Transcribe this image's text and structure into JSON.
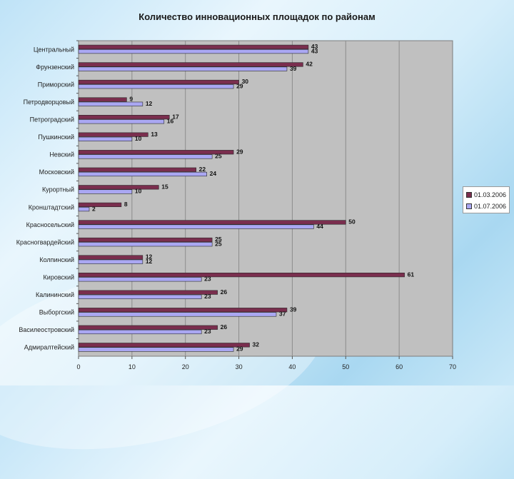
{
  "chart_data": {
    "type": "bar",
    "orientation": "horizontal",
    "title": "Количество инновационных площадок по районам",
    "categories": [
      "Центральный",
      "Фрунзенский",
      "Приморский",
      "Петродворцовый",
      "Петроградский",
      "Пушкинский",
      "Невский",
      "Московский",
      "Курортный",
      "Кронштадтский",
      "Красносельский",
      "Красногвардейский",
      "Колпинский",
      "Кировский",
      "Калининский",
      "Выборгский",
      "Василеостровский",
      "Адмиралтейский"
    ],
    "series": [
      {
        "name": "01.03.2006",
        "color": "#7a2e4e",
        "values": [
          43,
          42,
          30,
          9,
          17,
          13,
          29,
          22,
          15,
          8,
          50,
          25,
          12,
          61,
          26,
          39,
          26,
          32
        ]
      },
      {
        "name": "01.07.2006",
        "color": "#aaa7f2",
        "values": [
          43,
          39,
          29,
          12,
          16,
          10,
          25,
          24,
          10,
          2,
          44,
          25,
          12,
          23,
          23,
          37,
          23,
          29
        ]
      }
    ],
    "xlim": [
      0,
      70
    ],
    "xticks": [
      "0",
      "10",
      "20",
      "30",
      "40",
      "50",
      "60",
      "70"
    ],
    "grid": true,
    "legend_position": "right"
  }
}
